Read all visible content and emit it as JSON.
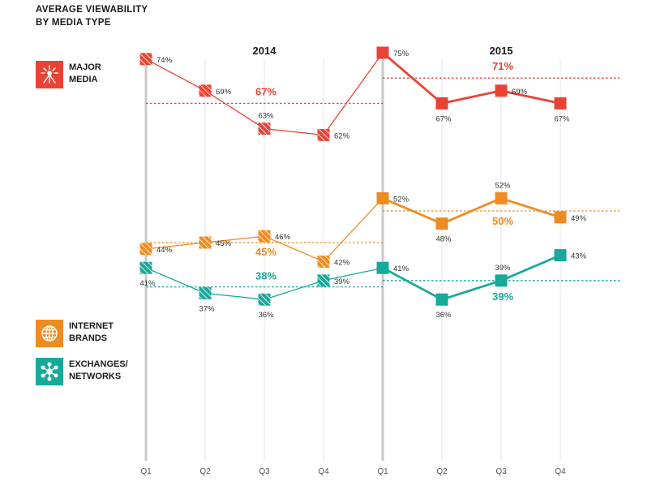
{
  "title_line1": "AVERAGE VIEWABILITY",
  "title_line2": "BY MEDIA TYPE",
  "chart_data": {
    "type": "line",
    "title": "AVERAGE VIEWABILITY BY MEDIA TYPE",
    "year_groups": [
      "2014",
      "2015"
    ],
    "categories": [
      "Q1",
      "Q2",
      "Q3",
      "Q4",
      "Q1",
      "Q2",
      "Q3",
      "Q4"
    ],
    "grid": "vertical",
    "legend_position": "left",
    "series": [
      {
        "name": "MAJOR MEDIA",
        "color": "#ea4335",
        "icon": "satellite-dish-icon",
        "values": [
          74,
          69,
          63,
          62,
          75,
          67,
          69,
          67
        ],
        "labels": [
          "74%",
          "69%",
          "63%",
          "62%",
          "75%",
          "67%",
          "69%",
          "67%"
        ],
        "averages": [
          {
            "year": "2014",
            "value": 67,
            "label": "67%"
          },
          {
            "year": "2015",
            "value": 71,
            "label": "71%"
          }
        ]
      },
      {
        "name": "INTERNET BRANDS",
        "color": "#ee8c22",
        "icon": "globe-icon",
        "values": [
          44,
          45,
          46,
          42,
          52,
          48,
          52,
          49
        ],
        "labels": [
          "44%",
          "45%",
          "46%",
          "42%",
          "52%",
          "48%",
          "52%",
          "49%"
        ],
        "averages": [
          {
            "year": "2014",
            "value": 45,
            "label": "45%"
          },
          {
            "year": "2015",
            "value": 50,
            "label": "50%"
          }
        ]
      },
      {
        "name": "EXCHANGES/ NETWORKS",
        "color": "#17a99a",
        "icon": "network-icon",
        "values": [
          41,
          37,
          36,
          39,
          41,
          36,
          39,
          43
        ],
        "labels": [
          "41%",
          "37%",
          "36%",
          "39%",
          "41%",
          "36%",
          "39%",
          "43%"
        ],
        "averages": [
          {
            "year": "2014",
            "value": 38,
            "label": "38%"
          },
          {
            "year": "2015",
            "value": 39,
            "label": "39%"
          }
        ]
      }
    ]
  },
  "legend": [
    {
      "label": "MAJOR\nMEDIA"
    },
    {
      "label": "INTERNET\nBRANDS"
    },
    {
      "label": "EXCHANGES/\nNETWORKS"
    }
  ]
}
